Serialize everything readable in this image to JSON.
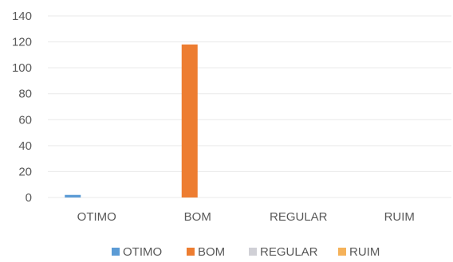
{
  "chart_data": {
    "type": "bar",
    "categories": [
      "OTIMO",
      "BOM",
      "REGULAR",
      "RUIM"
    ],
    "series": [
      {
        "name": "OTIMO",
        "color": "#5b9bd5",
        "values": [
          2,
          0,
          0,
          0
        ]
      },
      {
        "name": "BOM",
        "color": "#ed7d31",
        "values": [
          0,
          118,
          0,
          0
        ]
      },
      {
        "name": "REGULAR",
        "color": "#d0d0d6",
        "values": [
          0,
          0,
          0,
          0
        ]
      },
      {
        "name": "RUIM",
        "color": "#f5b25a",
        "values": [
          0,
          0,
          0,
          0
        ]
      }
    ],
    "yticks": [
      "0",
      "20",
      "40",
      "60",
      "80",
      "100",
      "120",
      "140"
    ],
    "ylim": [
      0,
      140
    ],
    "grid": true,
    "legend": "bottom"
  }
}
